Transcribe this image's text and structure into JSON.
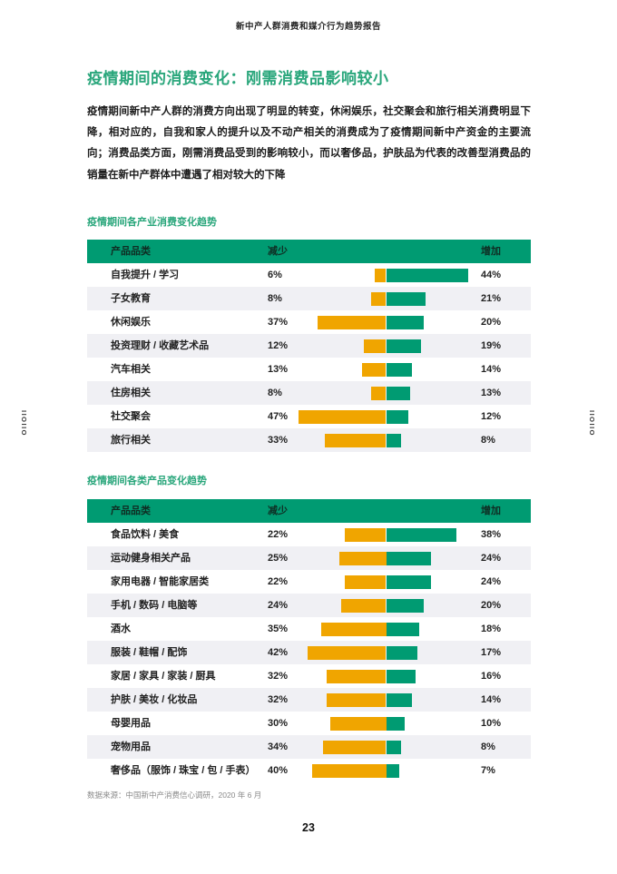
{
  "page": {
    "header": "新中产人群消费和媒介行为趋势报告",
    "title": "疫情期间的消费变化：刚需消费品影响较小",
    "paragraph": "疫情期间新中产人群的消费方向出现了明显的转变，休闲娱乐，社交聚会和旅行相关消费明显下降，相对应的，自我和家人的提升以及不动产相关的消费成为了疫情期间新中产资金的主要流向；消费品类方面，刚需消费品受到的影响较小，而以奢侈品，护肤品为代表的改善型消费品的销量在新中产群体中遭遇了相对较大的下降",
    "source_note": "数据来源：中国新中产消费信心调研，2020 年 6 月",
    "page_number": "23",
    "side_marker": "IIOIIO"
  },
  "colors": {
    "accent_green": "#009B72",
    "accent_yellow": "#F0A500",
    "title_green": "#29A67B",
    "row_alt": "#F0F0F4"
  },
  "chart_data": [
    {
      "type": "bar",
      "title": "疫情期间各产业消费变化趋势",
      "columns": [
        "产品品类",
        "减少",
        "增加"
      ],
      "unit": "%",
      "legend": {
        "decrease_color": "#F0A500",
        "increase_color": "#009B72"
      },
      "rows": [
        {
          "category": "自我提升 / 学习",
          "decrease": 6,
          "increase": 44
        },
        {
          "category": "子女教育",
          "decrease": 8,
          "increase": 21
        },
        {
          "category": "休闲娱乐",
          "decrease": 37,
          "increase": 20
        },
        {
          "category": "投资理财 / 收藏艺术品",
          "decrease": 12,
          "increase": 19
        },
        {
          "category": "汽车相关",
          "decrease": 13,
          "increase": 14
        },
        {
          "category": "住房相关",
          "decrease": 8,
          "increase": 13
        },
        {
          "category": "社交聚会",
          "decrease": 47,
          "increase": 12
        },
        {
          "category": "旅行相关",
          "decrease": 33,
          "increase": 8
        }
      ]
    },
    {
      "type": "bar",
      "title": "疫情期间各类产品变化趋势",
      "columns": [
        "产品品类",
        "减少",
        "增加"
      ],
      "unit": "%",
      "legend": {
        "decrease_color": "#F0A500",
        "increase_color": "#009B72"
      },
      "rows": [
        {
          "category": "食品饮料 / 美食",
          "decrease": 22,
          "increase": 38
        },
        {
          "category": "运动健身相关产品",
          "decrease": 25,
          "increase": 24
        },
        {
          "category": "家用电器 / 智能家居类",
          "decrease": 22,
          "increase": 24
        },
        {
          "category": "手机 / 数码 / 电脑等",
          "decrease": 24,
          "increase": 20
        },
        {
          "category": "酒水",
          "decrease": 35,
          "increase": 18
        },
        {
          "category": "服装 / 鞋帽 / 配饰",
          "decrease": 42,
          "increase": 17
        },
        {
          "category": "家居 / 家具 / 家装 / 厨具",
          "decrease": 32,
          "increase": 16
        },
        {
          "category": "护肤 / 美妆 / 化妆品",
          "decrease": 32,
          "increase": 14
        },
        {
          "category": "母婴用品",
          "decrease": 30,
          "increase": 10
        },
        {
          "category": "宠物用品",
          "decrease": 34,
          "increase": 8
        },
        {
          "category": "奢侈品（服饰 / 珠宝 / 包 / 手表）",
          "decrease": 40,
          "increase": 7
        }
      ]
    }
  ]
}
